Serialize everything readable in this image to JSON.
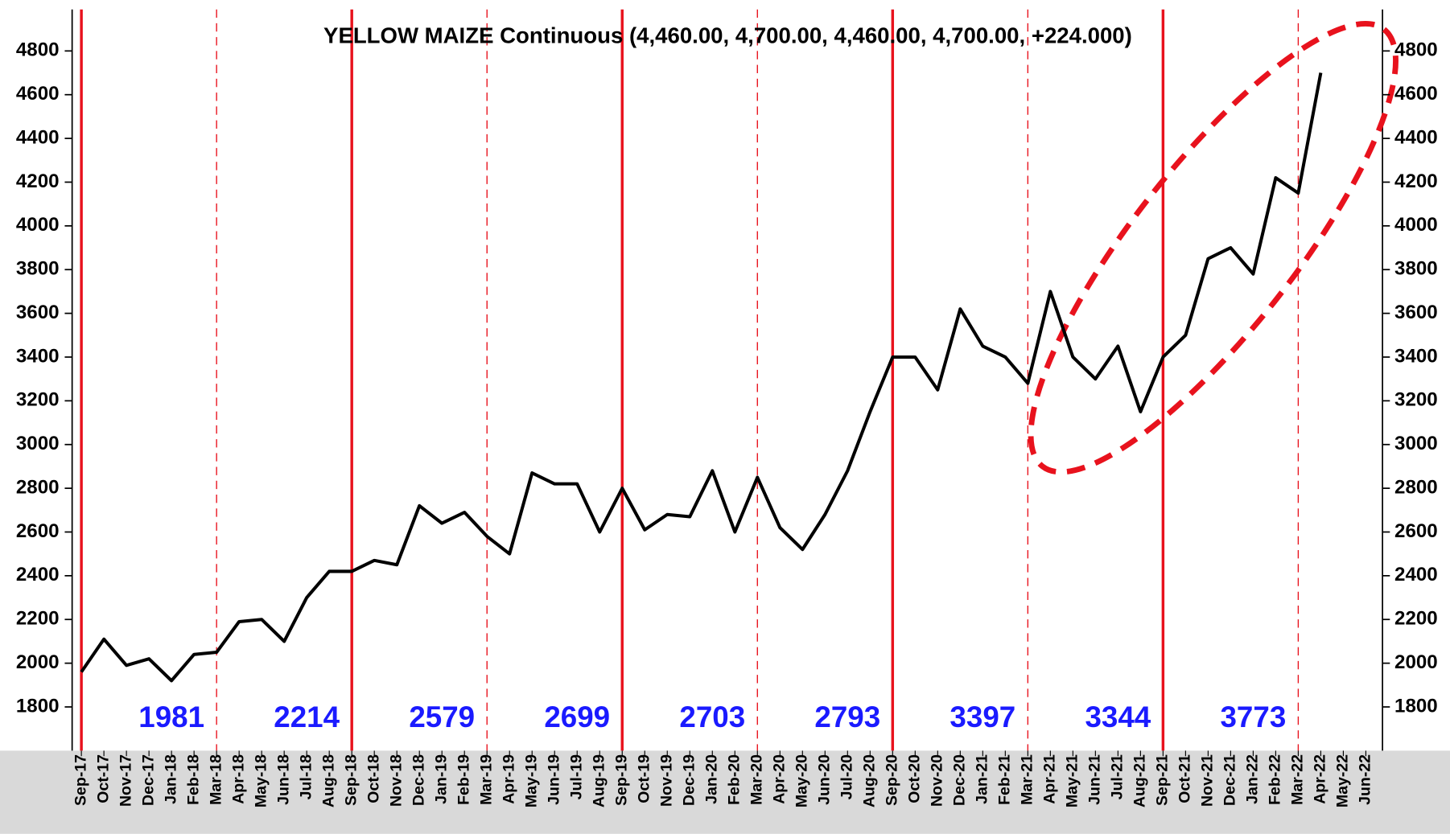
{
  "chart_data": {
    "type": "line",
    "title": "YELLOW MAIZE Continuous (4,460.00, 4,700.00, 4,460.00, 4,700.00, +224.000)",
    "categories": [
      "Sep-17",
      "Oct-17",
      "Nov-17",
      "Dec-17",
      "Jan-18",
      "Feb-18",
      "Mar-18",
      "Apr-18",
      "May-18",
      "Jun-18",
      "Jul-18",
      "Aug-18",
      "Sep-18",
      "Oct-18",
      "Nov-18",
      "Dec-18",
      "Jan-19",
      "Feb-19",
      "Mar-19",
      "Apr-19",
      "May-19",
      "Jun-19",
      "Jul-19",
      "Aug-19",
      "Sep-19",
      "Oct-19",
      "Nov-19",
      "Dec-19",
      "Jan-20",
      "Feb-20",
      "Mar-20",
      "Apr-20",
      "May-20",
      "Jun-20",
      "Jul-20",
      "Aug-20",
      "Sep-20",
      "Oct-20",
      "Nov-20",
      "Dec-20",
      "Jan-21",
      "Feb-21",
      "Mar-21",
      "Apr-21",
      "May-21",
      "Jun-21",
      "Jul-21",
      "Aug-21",
      "Sep-21",
      "Oct-21",
      "Nov-21",
      "Dec-21",
      "Jan-22",
      "Feb-22",
      "Mar-22",
      "Apr-22",
      "May-22",
      "Jun-22"
    ],
    "series": [
      {
        "color": "#000000",
        "values": [
          1960,
          2110,
          1990,
          2020,
          1920,
          2040,
          2050,
          2190,
          2200,
          2100,
          2300,
          2420,
          2420,
          2470,
          2450,
          2720,
          2640,
          2690,
          2580,
          2500,
          2870,
          2820,
          2820,
          2600,
          2800,
          2610,
          2680,
          2670,
          2880,
          2600,
          2850,
          2620,
          2520,
          2680,
          2880,
          3150,
          3400,
          3400,
          3250,
          3620,
          3450,
          3400,
          3280,
          3700,
          3400,
          3300,
          3450,
          3150,
          3400,
          3500,
          3850,
          3900,
          3780,
          4220,
          4150,
          4700,
          null,
          null
        ]
      }
    ],
    "season_labels": [
      1981,
      2214,
      2579,
      2699,
      2703,
      2793,
      3397,
      3344,
      3773
    ],
    "ylim": [
      1600,
      4990
    ],
    "yticks": [
      1800,
      2000,
      2200,
      2400,
      2600,
      2800,
      3000,
      3200,
      3400,
      3600,
      3800,
      4000,
      4200,
      4400,
      4600,
      4800
    ]
  }
}
